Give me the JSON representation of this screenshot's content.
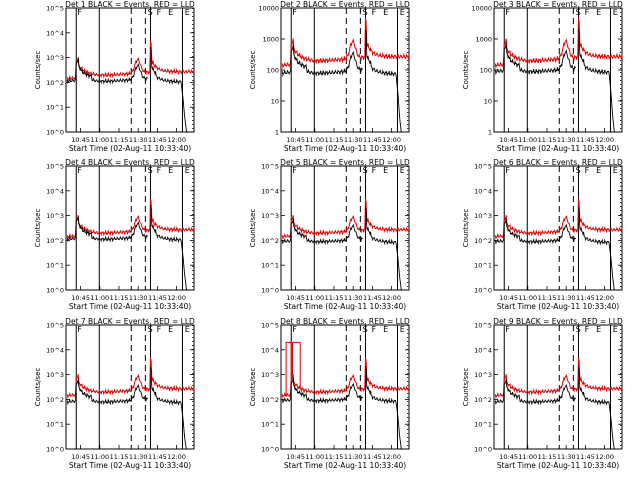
{
  "figure": {
    "xlabel": "Start Time (02-Aug-11 10:33:40)",
    "ylabel": "Counts/sec",
    "x_ticks": [
      "10:45",
      "11:00",
      "11:15",
      "11:30",
      "11:45",
      "12:00"
    ],
    "x_range_min": [
      0,
      100
    ],
    "colors": {
      "events": "#000000",
      "lld": "#e00000",
      "markers": "#000000"
    },
    "vertical_markers": [
      {
        "x_min": 8,
        "style": "solid"
      },
      {
        "x_min": 26,
        "style": "solid"
      },
      {
        "x_min": 51,
        "style": "dashed"
      },
      {
        "x_min": 62,
        "style": "dashed"
      },
      {
        "x_min": 66,
        "style": "solid"
      },
      {
        "x_min": 91,
        "style": "solid"
      },
      {
        "x_min": 99,
        "style": "dotted"
      }
    ],
    "marker_letters": [
      {
        "x_min": 8,
        "text": "F"
      },
      {
        "x_min": 63,
        "text": "S"
      },
      {
        "x_min": 70,
        "text": "F"
      },
      {
        "x_min": 79,
        "text": "E"
      },
      {
        "x_min": 92,
        "text": "E"
      }
    ]
  },
  "chart_data": [
    {
      "type": "line",
      "title": "Det 1 BLACK = Events, RED = LLD",
      "yscale": "log",
      "ylim": [
        1,
        100000
      ],
      "y_tick_labels": [
        "10^0",
        "10^1",
        "10^2",
        "10^3",
        "10^4",
        "10^5"
      ],
      "events_gap_start": 21,
      "events_offset": -0.1,
      "spike": [
        8,
        12
      ],
      "extra": []
    },
    {
      "type": "line",
      "title": "Det 2 BLACK = Events, RED = LLD",
      "yscale": "log",
      "ylim": [
        1,
        10000
      ],
      "y_tick_labels": [
        "1",
        "10",
        "100",
        "1000",
        "10000"
      ],
      "events_gap_start": 21,
      "events_offset": -0.25,
      "spike": [
        8,
        12
      ],
      "extra": []
    },
    {
      "type": "line",
      "title": "Det 3 BLACK = Events, RED = LLD",
      "yscale": "log",
      "ylim": [
        1,
        10000
      ],
      "y_tick_labels": [
        "1",
        "10",
        "100",
        "1000",
        "10000"
      ],
      "events_gap_start": 21,
      "events_offset": -0.2,
      "spike": [
        8,
        12
      ],
      "extra": []
    },
    {
      "type": "line",
      "title": "Det 4 BLACK = Events, RED = LLD",
      "yscale": "log",
      "ylim": [
        1,
        100000
      ],
      "y_tick_labels": [
        "10^0",
        "10^1",
        "10^2",
        "10^3",
        "10^4",
        "10^5"
      ],
      "events_gap_start": 21,
      "events_offset": -0.1,
      "spike": [
        8,
        12
      ],
      "extra": []
    },
    {
      "type": "line",
      "title": "Det 5 BLACK = Events, RED = LLD",
      "yscale": "log",
      "ylim": [
        1,
        100000
      ],
      "y_tick_labels": [
        "10^0",
        "10^1",
        "10^2",
        "10^3",
        "10^4",
        "10^5"
      ],
      "events_gap_start": 21,
      "events_offset": -0.2,
      "spike": [
        8,
        12
      ],
      "extra": []
    },
    {
      "type": "line",
      "title": "Det 6 BLACK = Events, RED = LLD",
      "yscale": "log",
      "ylim": [
        1,
        100000
      ],
      "y_tick_labels": [
        "10^0",
        "10^1",
        "10^2",
        "10^3",
        "10^4",
        "10^5"
      ],
      "events_gap_start": 21,
      "events_offset": -0.2,
      "spike": [
        8,
        12
      ],
      "extra": []
    },
    {
      "type": "line",
      "title": "Det 7 BLACK = Events, RED = LLD",
      "yscale": "log",
      "ylim": [
        1,
        100000
      ],
      "y_tick_labels": [
        "10^0",
        "10^1",
        "10^2",
        "10^3",
        "10^4",
        "10^5"
      ],
      "events_gap_start": 21,
      "events_offset": -0.25,
      "spike": [
        8,
        12
      ],
      "extra": []
    },
    {
      "type": "line",
      "title": "Det 8 BLACK = Events, RED = LLD",
      "yscale": "log",
      "ylim": [
        1,
        100000
      ],
      "y_tick_labels": [
        "10^0",
        "10^1",
        "10^2",
        "10^3",
        "10^4",
        "10^5"
      ],
      "events_gap_start": 21,
      "events_offset": -0.2,
      "spike": [
        8,
        12
      ],
      "extra": [
        {
          "x0_min": 4,
          "x1_min": 8,
          "y": 20000
        },
        {
          "x0_min": 9,
          "x1_min": 15,
          "y": 20000
        }
      ]
    },
    {
      "type": "line",
      "title": "Det 9 BLACK = Events, RED = LLD",
      "yscale": "log",
      "ylim": [
        1,
        100000
      ],
      "y_tick_labels": [
        "10^0",
        "10^1",
        "10^2",
        "10^3",
        "10^4",
        "10^5"
      ],
      "events_gap_start": 21,
      "events_offset": -0.25,
      "spike": [
        8,
        12
      ],
      "extra": []
    }
  ]
}
